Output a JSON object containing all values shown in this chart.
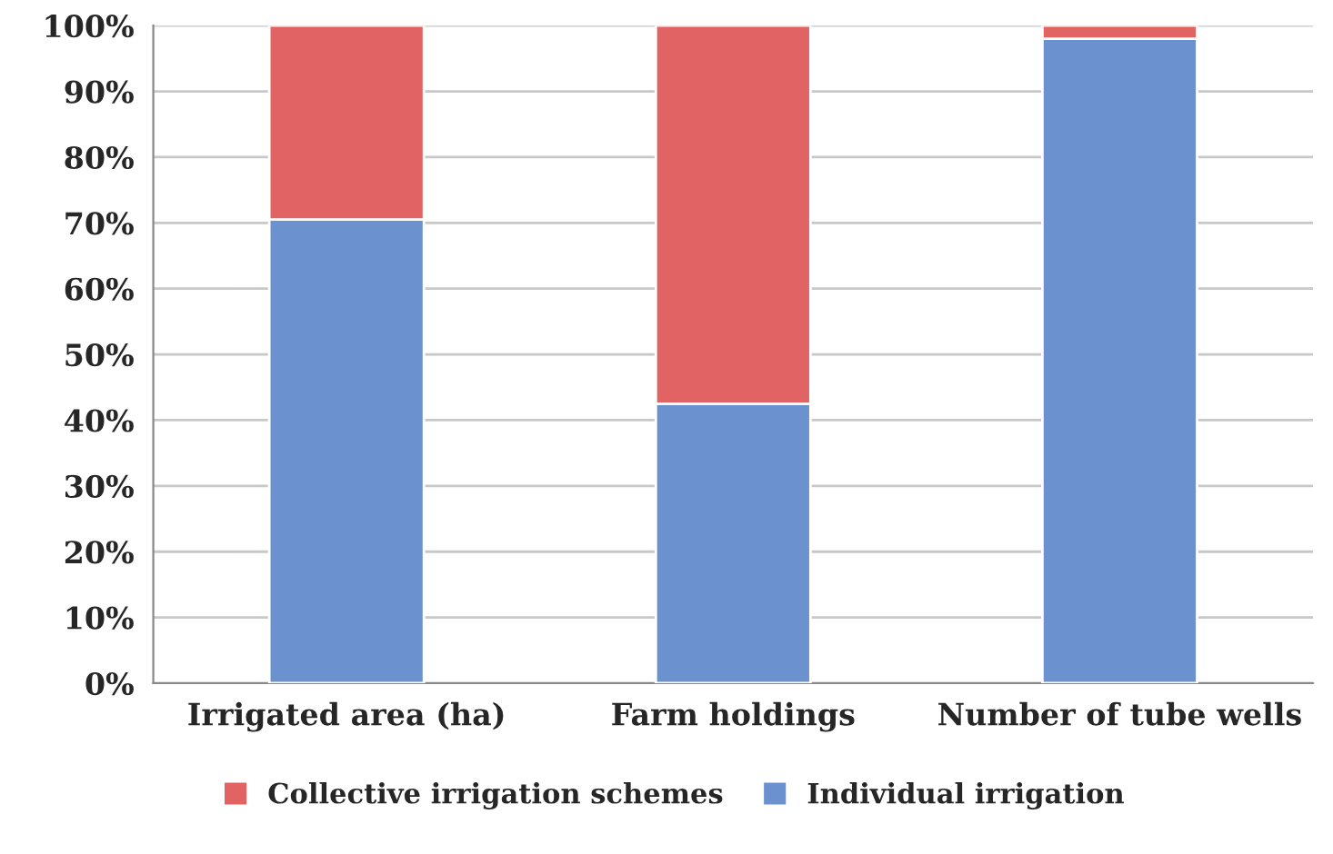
{
  "chart_data": {
    "type": "bar",
    "stacked": true,
    "categories": [
      "Irrigated area (ha)",
      "Farm holdings",
      "Number of tube wells"
    ],
    "series": [
      {
        "name": "Individual irrigation",
        "color": "#6b92cf",
        "values": [
          70.5,
          42.5,
          98
        ]
      },
      {
        "name": "Collective irrigation schemes",
        "color": "#e26363",
        "values": [
          29.5,
          57.5,
          2
        ]
      }
    ],
    "ylim": [
      0,
      100
    ],
    "yticks": [
      {
        "value": 0,
        "label": "0%"
      },
      {
        "value": 10,
        "label": "10%"
      },
      {
        "value": 20,
        "label": "20%"
      },
      {
        "value": 30,
        "label": "30%"
      },
      {
        "value": 40,
        "label": "40%"
      },
      {
        "value": 50,
        "label": "50%"
      },
      {
        "value": 60,
        "label": "60%"
      },
      {
        "value": 70,
        "label": "70%"
      },
      {
        "value": 80,
        "label": "80%"
      },
      {
        "value": 90,
        "label": "90%"
      },
      {
        "value": 100,
        "label": "100%"
      }
    ],
    "grid": "y",
    "legend": "bottom"
  }
}
